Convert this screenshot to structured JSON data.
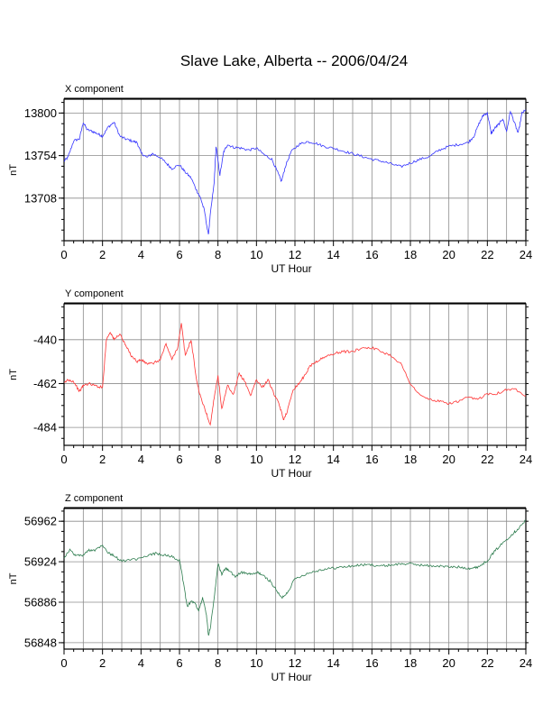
{
  "title": "Slave Lake, Alberta -- 2006/04/24",
  "chart_data": [
    {
      "type": "line",
      "panel_label": "X component",
      "xlabel": "UT Hour",
      "ylabel": "nT",
      "color": "#3333ff",
      "xlim": [
        0,
        24
      ],
      "ylim": [
        13662,
        13815
      ],
      "xticks": [
        0,
        2,
        4,
        6,
        8,
        10,
        12,
        14,
        16,
        18,
        20,
        22,
        24
      ],
      "yticks": [
        13708,
        13754,
        13800
      ],
      "grid": true,
      "x": [
        0,
        0.2,
        0.5,
        0.8,
        1.0,
        1.2,
        1.5,
        1.8,
        2.0,
        2.3,
        2.6,
        2.9,
        3.2,
        3.5,
        3.8,
        4.0,
        4.3,
        4.6,
        5.0,
        5.3,
        5.6,
        6.0,
        6.3,
        6.6,
        6.9,
        7.1,
        7.3,
        7.5,
        7.6,
        7.8,
        7.9,
        8.1,
        8.3,
        8.5,
        8.8,
        9.2,
        9.6,
        10.0,
        10.4,
        10.8,
        11.1,
        11.3,
        11.5,
        11.8,
        12.2,
        12.6,
        13.0,
        13.5,
        14.0,
        14.5,
        15.0,
        15.5,
        16.0,
        16.5,
        17.0,
        17.5,
        18.0,
        18.5,
        19.0,
        19.5,
        20.0,
        20.5,
        21.0,
        21.3,
        21.6,
        21.8,
        22.0,
        22.2,
        22.4,
        22.6,
        22.8,
        23.0,
        23.2,
        23.4,
        23.6,
        23.8,
        24.0
      ],
      "values": [
        13748,
        13752,
        13770,
        13772,
        13790,
        13782,
        13780,
        13777,
        13775,
        13785,
        13790,
        13775,
        13772,
        13770,
        13768,
        13757,
        13752,
        13756,
        13752,
        13746,
        13740,
        13744,
        13736,
        13730,
        13716,
        13708,
        13694,
        13668,
        13690,
        13724,
        13764,
        13733,
        13758,
        13766,
        13763,
        13762,
        13760,
        13762,
        13755,
        13750,
        13736,
        13726,
        13742,
        13758,
        13766,
        13769,
        13768,
        13764,
        13762,
        13759,
        13756,
        13753,
        13750,
        13748,
        13745,
        13742,
        13746,
        13750,
        13753,
        13760,
        13764,
        13766,
        13768,
        13775,
        13790,
        13798,
        13800,
        13778,
        13784,
        13788,
        13794,
        13780,
        13802,
        13790,
        13778,
        13800,
        13803
      ]
    },
    {
      "type": "line",
      "panel_label": "Y component",
      "xlabel": "UT Hour",
      "ylabel": "nT",
      "color": "#ff3333",
      "xlim": [
        0,
        24
      ],
      "ylim": [
        -493,
        -422
      ],
      "xticks": [
        0,
        2,
        4,
        6,
        8,
        10,
        12,
        14,
        16,
        18,
        20,
        22,
        24
      ],
      "yticks": [
        -484,
        -462,
        -440
      ],
      "grid": true,
      "x": [
        0,
        0.2,
        0.5,
        0.8,
        1.0,
        1.3,
        1.6,
        2.0,
        2.2,
        2.4,
        2.6,
        2.9,
        3.2,
        3.5,
        3.8,
        4.0,
        4.3,
        4.6,
        5.0,
        5.3,
        5.6,
        5.9,
        6.1,
        6.3,
        6.6,
        6.9,
        7.1,
        7.4,
        7.6,
        7.8,
        8.0,
        8.2,
        8.5,
        8.8,
        9.1,
        9.4,
        9.7,
        10.0,
        10.3,
        10.6,
        10.9,
        11.2,
        11.4,
        11.6,
        11.9,
        12.2,
        12.5,
        12.8,
        13.1,
        13.5,
        14.0,
        14.5,
        15.0,
        15.5,
        16.0,
        16.5,
        17.0,
        17.5,
        18.0,
        18.5,
        19.0,
        19.5,
        20.0,
        20.5,
        21.0,
        21.5,
        22.0,
        22.5,
        23.0,
        23.5,
        24.0
      ],
      "values": [
        -462,
        -460,
        -461,
        -466,
        -463,
        -462,
        -463,
        -464,
        -440,
        -436,
        -440,
        -437,
        -443,
        -448,
        -451,
        -450,
        -452,
        -452,
        -450,
        -442,
        -450,
        -444,
        -432,
        -448,
        -440,
        -461,
        -469,
        -477,
        -483,
        -469,
        -458,
        -475,
        -463,
        -468,
        -457,
        -461,
        -468,
        -460,
        -464,
        -460,
        -467,
        -473,
        -480,
        -476,
        -465,
        -462,
        -458,
        -453,
        -451,
        -449,
        -447,
        -446,
        -446,
        -444,
        -444,
        -446,
        -448,
        -452,
        -462,
        -468,
        -470,
        -471,
        -472,
        -471,
        -469,
        -470,
        -467,
        -467,
        -465,
        -465,
        -468
      ]
    },
    {
      "type": "line",
      "panel_label": "Z component",
      "xlabel": "UT Hour",
      "ylabel": "nT",
      "color": "#2e7d4f",
      "xlim": [
        0,
        24
      ],
      "ylim": [
        56842,
        56974
      ],
      "xticks": [
        0,
        2,
        4,
        6,
        8,
        10,
        12,
        14,
        16,
        18,
        20,
        22,
        24
      ],
      "yticks": [
        56848,
        56886,
        56924,
        56962
      ],
      "grid": true,
      "x": [
        0,
        0.3,
        0.6,
        1.0,
        1.3,
        1.6,
        2.0,
        2.3,
        2.6,
        2.9,
        3.2,
        3.6,
        4.0,
        4.4,
        4.8,
        5.2,
        5.6,
        6.0,
        6.2,
        6.4,
        6.6,
        6.8,
        7.0,
        7.2,
        7.4,
        7.5,
        7.6,
        7.8,
        8.0,
        8.2,
        8.4,
        8.6,
        8.9,
        9.2,
        9.5,
        9.8,
        10.1,
        10.4,
        10.7,
        11.0,
        11.3,
        11.6,
        12.0,
        12.5,
        13.0,
        13.5,
        14.0,
        14.5,
        15.0,
        15.5,
        16.0,
        16.5,
        17.0,
        17.5,
        18.0,
        18.5,
        19.0,
        19.5,
        20.0,
        20.5,
        21.0,
        21.3,
        21.6,
        22.0,
        22.3,
        22.6,
        23.0,
        23.3,
        23.6,
        24.0
      ],
      "values": [
        56928,
        56935,
        56930,
        56930,
        56935,
        56935,
        56940,
        56932,
        56930,
        56925,
        56925,
        56926,
        56927,
        56930,
        56932,
        56930,
        56929,
        56925,
        56905,
        56882,
        56887,
        56885,
        56878,
        56890,
        56875,
        56855,
        56862,
        56890,
        56922,
        56912,
        56918,
        56915,
        56910,
        56914,
        56913,
        56912,
        56914,
        56910,
        56906,
        56898,
        56890,
        56895,
        56908,
        56912,
        56915,
        56917,
        56918,
        56919,
        56920,
        56921,
        56921,
        56920,
        56921,
        56922,
        56922,
        56921,
        56920,
        56920,
        56919,
        56919,
        56918,
        56918,
        56920,
        56925,
        56932,
        56938,
        56945,
        56950,
        56955,
        56963
      ]
    }
  ]
}
